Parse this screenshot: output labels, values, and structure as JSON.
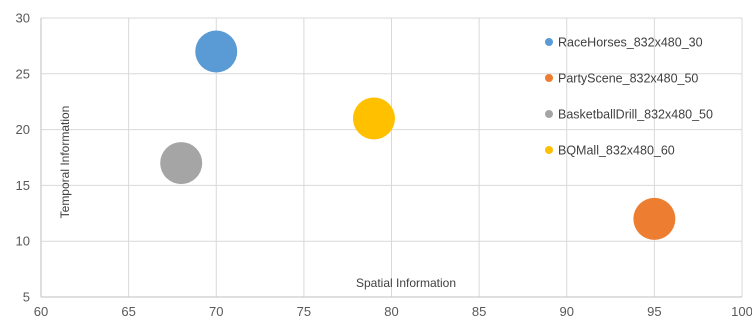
{
  "chart_data": {
    "type": "scatter",
    "title": "",
    "xlabel": "Spatial Information",
    "ylabel": "Temporal Information",
    "xlim": [
      60,
      100
    ],
    "ylim": [
      5,
      30
    ],
    "xticks": [
      60,
      65,
      70,
      75,
      80,
      85,
      90,
      95,
      100
    ],
    "yticks": [
      5,
      10,
      15,
      20,
      25,
      30
    ],
    "grid": true,
    "legend_position": "right",
    "series": [
      {
        "name": "RaceHorses_832x480_30",
        "color": "#5b9bd5",
        "x": 70,
        "y": 27
      },
      {
        "name": "PartyScene_832x480_50",
        "color": "#ed7d31",
        "x": 95,
        "y": 12
      },
      {
        "name": "BasketballDrill_832x480_50",
        "color": "#a5a5a5",
        "x": 68,
        "y": 17
      },
      {
        "name": "BQMall_832x480_60",
        "color": "#ffc000",
        "x": 79,
        "y": 21
      }
    ]
  }
}
